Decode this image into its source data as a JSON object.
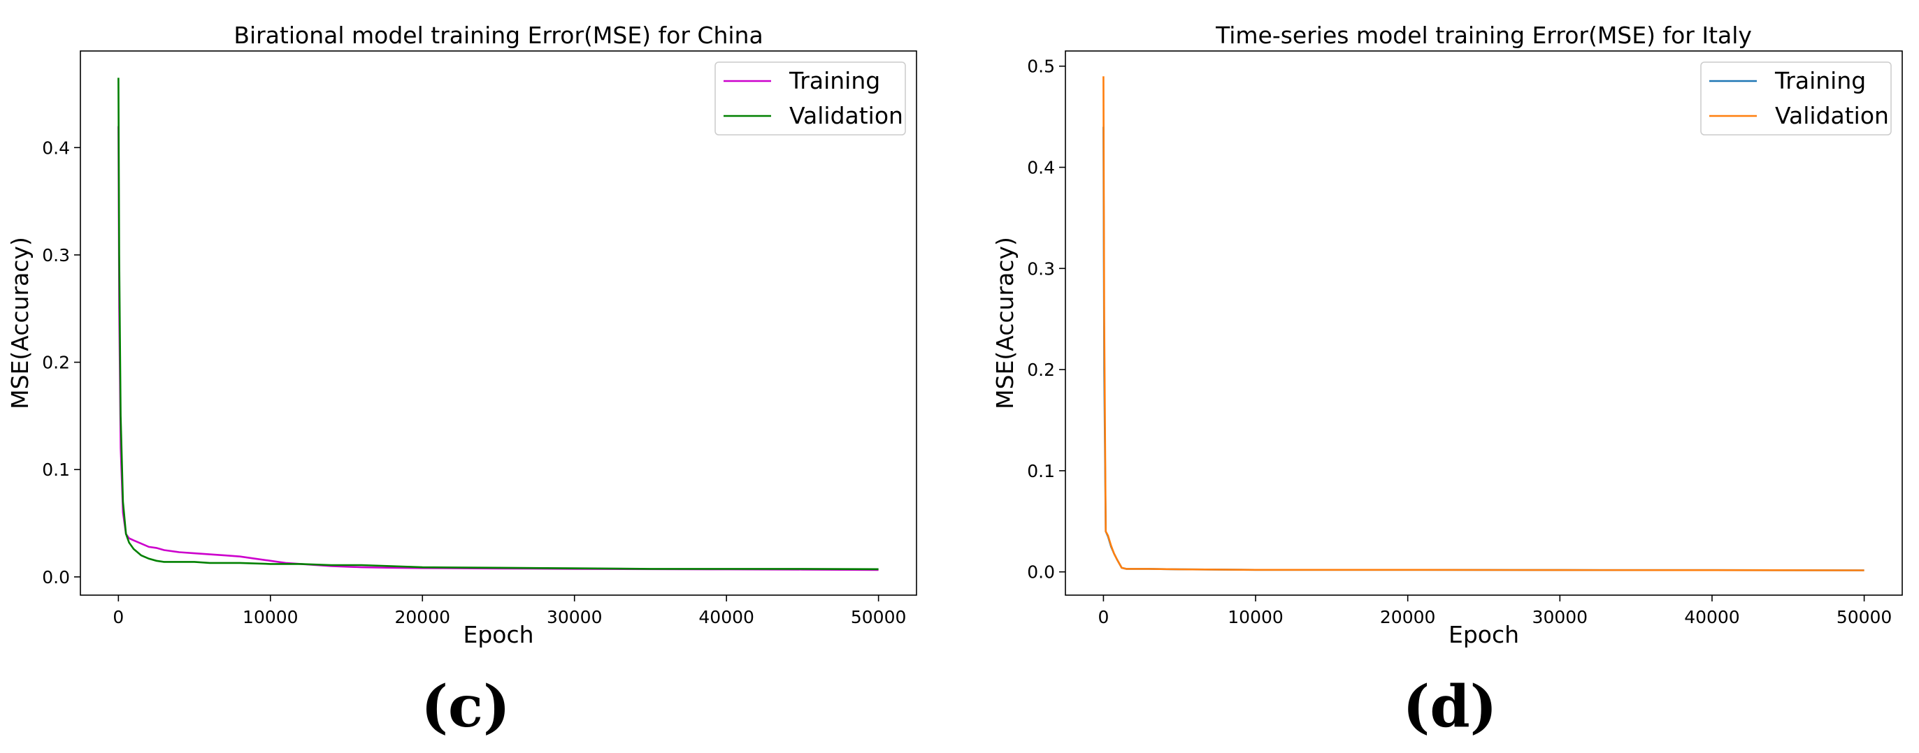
{
  "panels": [
    {
      "label": "(c)"
    },
    {
      "label": "(d)"
    }
  ],
  "chart_data": [
    {
      "type": "line",
      "title": "Birational model training Error(MSE) for China",
      "xlabel": "Epoch",
      "ylabel": "MSE(Accuracy)",
      "xlim": [
        -2500,
        52500
      ],
      "ylim": [
        -0.017,
        0.49
      ],
      "xticks": [
        0,
        10000,
        20000,
        30000,
        40000,
        50000
      ],
      "xtick_labels": [
        "0",
        "10000",
        "20000",
        "30000",
        "40000",
        "50000"
      ],
      "yticks": [
        0.0,
        0.1,
        0.2,
        0.3,
        0.4
      ],
      "ytick_labels": [
        "0.0",
        "0.1",
        "0.2",
        "0.3",
        "0.4"
      ],
      "legend_position": "top-right",
      "grid": false,
      "series": [
        {
          "name": "Training",
          "color": "#cc00cc",
          "x": [
            0,
            50,
            150,
            300,
            500,
            700,
            1000,
            1500,
            2000,
            2500,
            3000,
            4000,
            5000,
            6000,
            7000,
            8000,
            9000,
            10000,
            11000,
            12000,
            14000,
            16000,
            18000,
            20000,
            25000,
            30000,
            35000,
            40000,
            45000,
            50000
          ],
          "y": [
            0.42,
            0.25,
            0.12,
            0.06,
            0.04,
            0.036,
            0.034,
            0.031,
            0.028,
            0.027,
            0.025,
            0.023,
            0.022,
            0.021,
            0.02,
            0.019,
            0.017,
            0.015,
            0.013,
            0.012,
            0.01,
            0.009,
            0.0085,
            0.0082,
            0.0078,
            0.0075,
            0.0072,
            0.007,
            0.0068,
            0.0065
          ]
        },
        {
          "name": "Validation",
          "color": "#008000",
          "x": [
            0,
            50,
            150,
            300,
            500,
            700,
            1000,
            1500,
            2000,
            2500,
            3000,
            4000,
            5000,
            6000,
            8000,
            10000,
            12000,
            14000,
            16000,
            18000,
            20000,
            25000,
            30000,
            35000,
            40000,
            45000,
            50000
          ],
          "y": [
            0.465,
            0.3,
            0.15,
            0.07,
            0.04,
            0.032,
            0.026,
            0.02,
            0.017,
            0.015,
            0.014,
            0.014,
            0.014,
            0.013,
            0.013,
            0.012,
            0.012,
            0.011,
            0.011,
            0.01,
            0.009,
            0.0085,
            0.008,
            0.0075,
            0.0075,
            0.0075,
            0.0072
          ]
        }
      ]
    },
    {
      "type": "line",
      "title": "Time-series model training Error(MSE) for Italy",
      "xlabel": "Epoch",
      "ylabel": "MSE(Accuracy)",
      "xlim": [
        -2500,
        52500
      ],
      "ylim": [
        -0.023,
        0.515
      ],
      "xticks": [
        0,
        10000,
        20000,
        30000,
        40000,
        50000
      ],
      "xtick_labels": [
        "0",
        "10000",
        "20000",
        "30000",
        "40000",
        "50000"
      ],
      "yticks": [
        0.0,
        0.1,
        0.2,
        0.3,
        0.4,
        0.5
      ],
      "ytick_labels": [
        "0.0",
        "0.1",
        "0.2",
        "0.3",
        "0.4",
        "0.5"
      ],
      "legend_position": "top-right",
      "grid": false,
      "series": [
        {
          "name": "Training",
          "color": "#1f77b4",
          "x": [
            0,
            50,
            150,
            300,
            500,
            700,
            900,
            1200,
            1500,
            2000,
            3000,
            5000,
            10000,
            20000,
            30000,
            40000,
            50000
          ],
          "y": [
            0.44,
            0.2,
            0.04,
            0.035,
            0.025,
            0.018,
            0.012,
            0.004,
            0.003,
            0.003,
            0.003,
            0.0025,
            0.002,
            0.002,
            0.0018,
            0.0017,
            0.0015
          ]
        },
        {
          "name": "Validation",
          "color": "#ff7f0e",
          "x": [
            0,
            50,
            150,
            300,
            500,
            700,
            900,
            1200,
            1500,
            2000,
            3000,
            5000,
            10000,
            20000,
            30000,
            40000,
            50000
          ],
          "y": [
            0.49,
            0.25,
            0.04,
            0.036,
            0.026,
            0.018,
            0.012,
            0.004,
            0.003,
            0.003,
            0.003,
            0.0025,
            0.002,
            0.002,
            0.0018,
            0.0017,
            0.0015
          ]
        }
      ]
    }
  ]
}
